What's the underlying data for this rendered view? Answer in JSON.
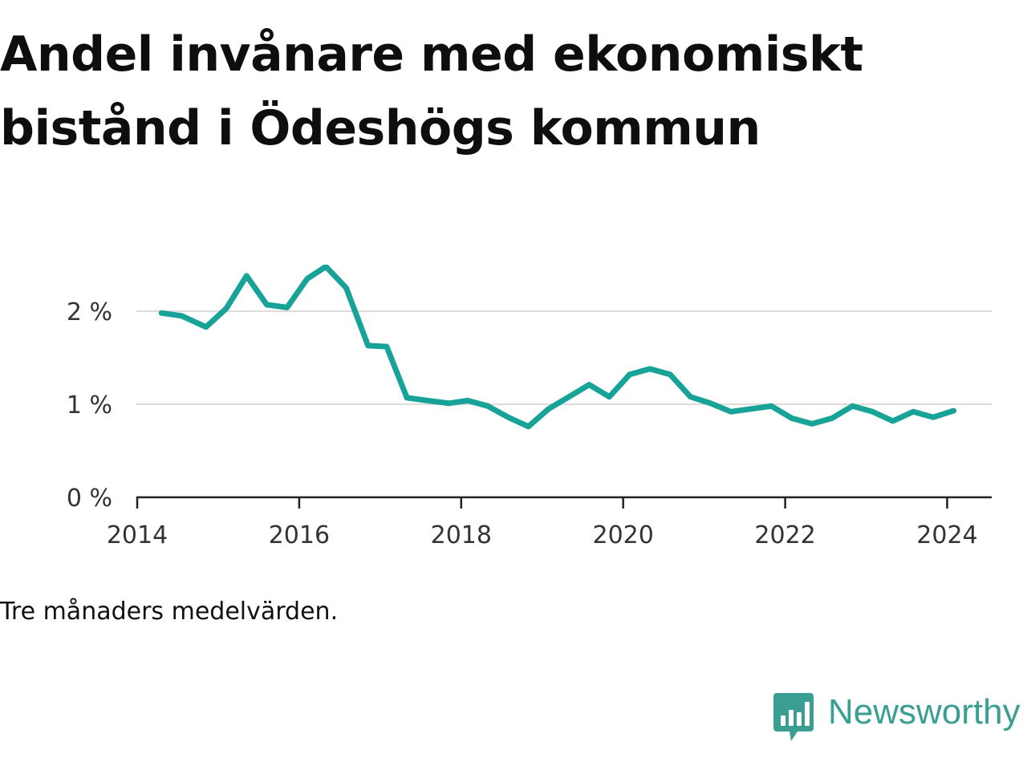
{
  "title": "Andel invånare med ekonomiskt bistånd i Ödeshögs kommun",
  "note": "Tre månaders medelvärden.",
  "brand": {
    "name": "Newsworthy",
    "logo_icon": "bar-chart-speech-bubble-icon",
    "color": "#3a9e92"
  },
  "chart_data": {
    "type": "line",
    "title": "Andel invånare med ekonomiskt bistånd i Ödeshögs kommun",
    "xlabel": "",
    "ylabel": "",
    "xlim": [
      2013.99,
      2024.55
    ],
    "ylim": [
      0,
      2.5
    ],
    "x_ticks": [
      2014,
      2016,
      2018,
      2020,
      2022,
      2024
    ],
    "x_tick_labels": [
      "2014",
      "2016",
      "2018",
      "2020",
      "2022",
      "2024"
    ],
    "y_ticks": [
      0,
      1,
      2
    ],
    "y_tick_labels": [
      "0 %",
      "1 %",
      "2 %"
    ],
    "grid": "horizontal",
    "line_color": "#17a398",
    "series": [
      {
        "x": [
          2014.3,
          2014.55,
          2014.85,
          2015.1,
          2015.35,
          2015.6,
          2015.85,
          2016.1,
          2016.33,
          2016.58,
          2016.85,
          2017.08,
          2017.33,
          2017.58,
          2017.85,
          2018.08,
          2018.33,
          2018.58,
          2018.83,
          2019.08,
          2019.33,
          2019.58,
          2019.83,
          2020.08,
          2020.33,
          2020.58,
          2020.83,
          2021.08,
          2021.33,
          2021.58,
          2021.83,
          2022.08,
          2022.33,
          2022.58,
          2022.83,
          2023.08,
          2023.33,
          2023.58,
          2023.83,
          2024.08
        ],
        "y": [
          1.98,
          1.95,
          1.83,
          2.03,
          2.38,
          2.07,
          2.04,
          2.35,
          2.48,
          2.25,
          1.63,
          1.62,
          1.07,
          1.04,
          1.01,
          1.04,
          0.98,
          0.86,
          0.76,
          0.95,
          1.08,
          1.21,
          1.08,
          1.32,
          1.38,
          1.32,
          1.08,
          1.01,
          0.92,
          0.95,
          0.98,
          0.85,
          0.79,
          0.85,
          0.98,
          0.92,
          0.82,
          0.92,
          0.86,
          0.93
        ]
      }
    ]
  }
}
